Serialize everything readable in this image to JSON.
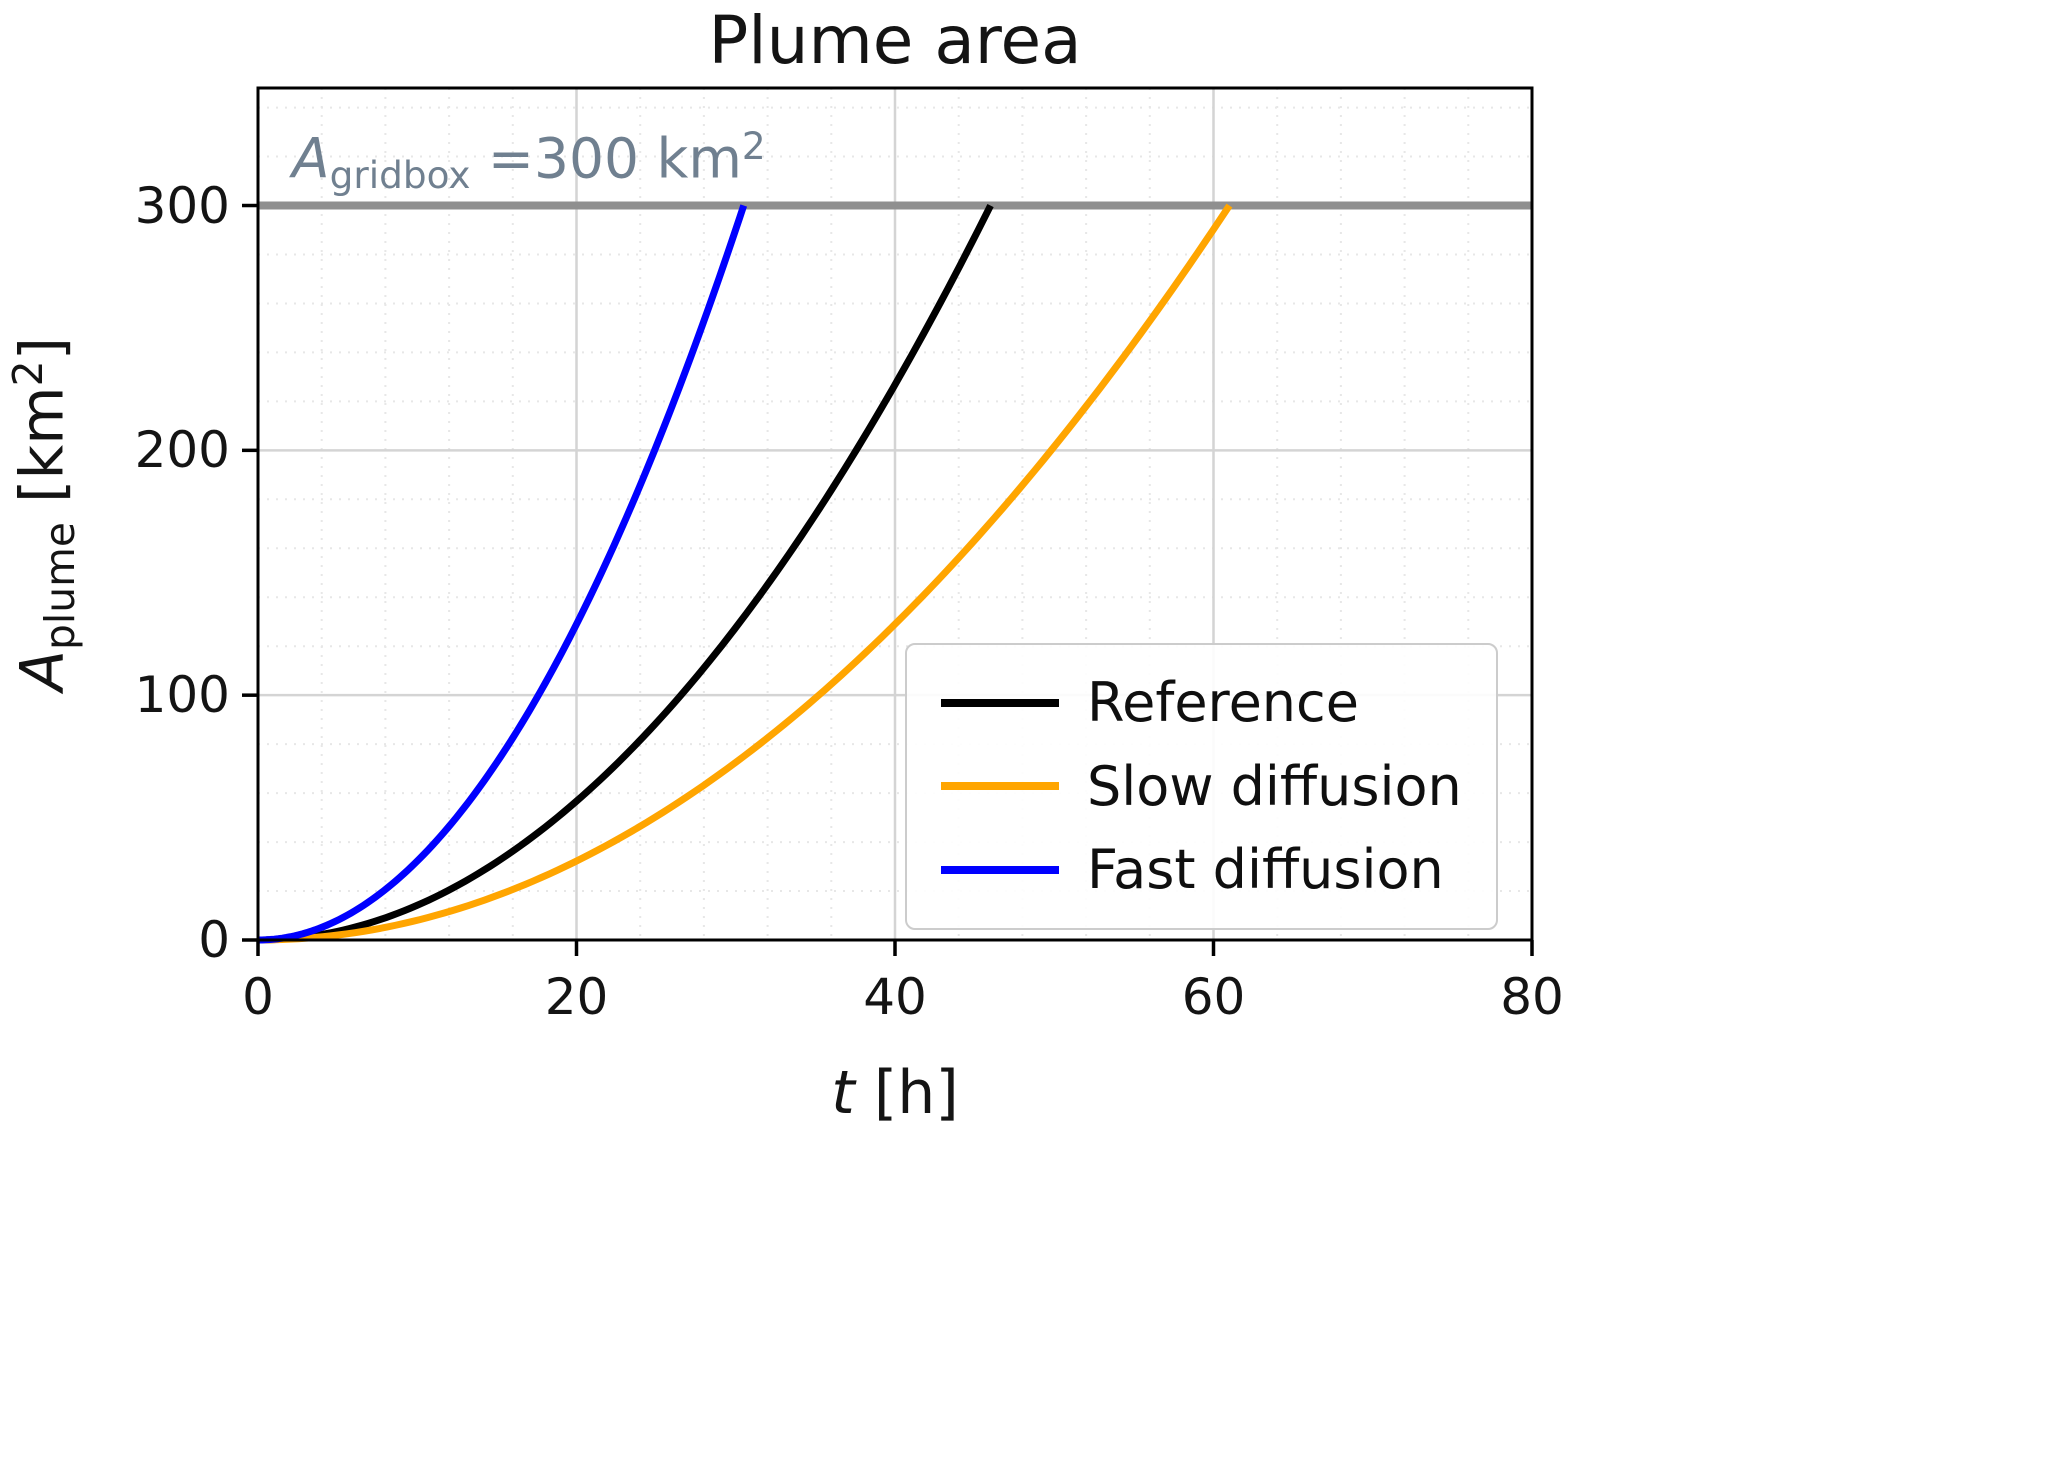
{
  "chart_data": {
    "type": "line",
    "title": "Plume area",
    "xlabel": "t [h]",
    "ylabel": "A_plume [km²]",
    "xlim": [
      0,
      80
    ],
    "ylim": [
      0,
      348
    ],
    "xticks": [
      0,
      20,
      40,
      60,
      80
    ],
    "yticks": [
      0,
      100,
      200,
      300
    ],
    "grid": true,
    "minor_grid": "dotted",
    "legend_position": "lower right",
    "hline": {
      "value": 300,
      "label": "A_gridbox =300 km²",
      "color": "#8f8f8f"
    },
    "model": "A(t) = A_max * (t / t_end)^2",
    "series": [
      {
        "name": "Reference",
        "color": "#000000",
        "a_max": 300,
        "t_end": 46,
        "exponent": 2,
        "t": [
          0,
          5,
          10,
          15,
          20,
          25,
          30,
          35,
          40,
          45,
          46
        ],
        "A": [
          0,
          3.5,
          14.2,
          31.9,
          56.7,
          88.6,
          127.6,
          173.7,
          226.8,
          287.1,
          300
        ]
      },
      {
        "name": "Slow diffusion",
        "color": "#ffa500",
        "a_max": 300,
        "t_end": 61,
        "exponent": 2,
        "t": [
          0,
          5,
          10,
          15,
          20,
          25,
          30,
          35,
          40,
          45,
          50,
          55,
          60,
          61
        ],
        "A": [
          0,
          2.0,
          8.1,
          18.1,
          32.2,
          50.4,
          72.6,
          98.8,
          129.0,
          163.3,
          201.6,
          243.9,
          290.2,
          300
        ]
      },
      {
        "name": "Fast diffusion",
        "color": "#0000ff",
        "a_max": 300,
        "t_end": 30.5,
        "exponent": 2,
        "t": [
          0,
          5,
          10,
          15,
          20,
          25,
          30,
          30.5
        ],
        "A": [
          0,
          8.1,
          32.3,
          72.5,
          129.0,
          201.5,
          290.3,
          300
        ]
      }
    ]
  },
  "labels": {
    "annotation": {
      "pre": "A",
      "sub": "gridbox",
      "mid": " =300 km",
      "sup": "2"
    },
    "ylabel": {
      "pre": "A",
      "sub": "plume",
      "mid": " [km",
      "sup": "2",
      "post": "]"
    },
    "xlabel": {
      "var": "t",
      "post": " [h]"
    }
  },
  "colors": {
    "annotation": "#708090",
    "frame": "#000000",
    "tick": "#000000",
    "grid_major": "#d4d4d4",
    "grid_minor": "#e7e7e7"
  }
}
